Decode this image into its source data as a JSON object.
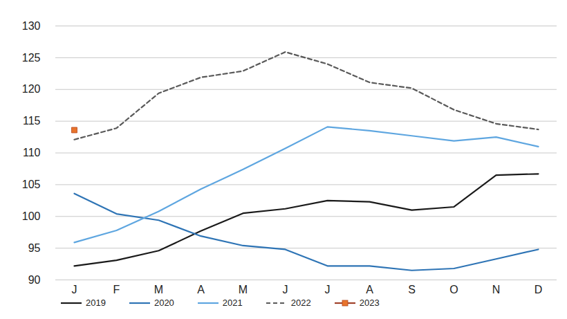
{
  "chart_data": {
    "type": "line",
    "categories": [
      "J",
      "F",
      "M",
      "A",
      "M",
      "J",
      "J",
      "A",
      "S",
      "O",
      "N",
      "D"
    ],
    "series": [
      {
        "name": "2019",
        "color": "#1a1a1a",
        "line_style": "solid",
        "values": [
          92.2,
          93.1,
          94.6,
          97.7,
          100.5,
          101.2,
          102.5,
          102.3,
          101.0,
          101.5,
          106.5,
          106.7
        ]
      },
      {
        "name": "2020",
        "color": "#2e74b5",
        "line_style": "solid",
        "values": [
          103.6,
          100.4,
          99.4,
          96.9,
          95.4,
          94.8,
          92.2,
          92.2,
          91.5,
          91.8,
          93.3,
          94.8
        ]
      },
      {
        "name": "2021",
        "color": "#5ea6e0",
        "line_style": "solid",
        "values": [
          95.9,
          97.8,
          100.8,
          104.3,
          107.4,
          110.7,
          114.1,
          113.5,
          112.7,
          111.9,
          112.5,
          111.0
        ]
      },
      {
        "name": "2022",
        "color": "#595959",
        "line_style": "dashed",
        "values": [
          112.1,
          113.9,
          119.4,
          121.9,
          122.9,
          125.9,
          124.0,
          121.1,
          120.2,
          116.8,
          114.6,
          113.7
        ]
      },
      {
        "name": "2023",
        "color": "#e8742c",
        "line_style": "solid",
        "marker": "square",
        "values": [
          113.6,
          null,
          null,
          null,
          null,
          null,
          null,
          null,
          null,
          null,
          null,
          null
        ]
      }
    ],
    "ylim": [
      90,
      130
    ],
    "yticks": [
      90,
      95,
      100,
      105,
      110,
      115,
      120,
      125,
      130
    ],
    "grid": true,
    "legend": "bottom"
  }
}
